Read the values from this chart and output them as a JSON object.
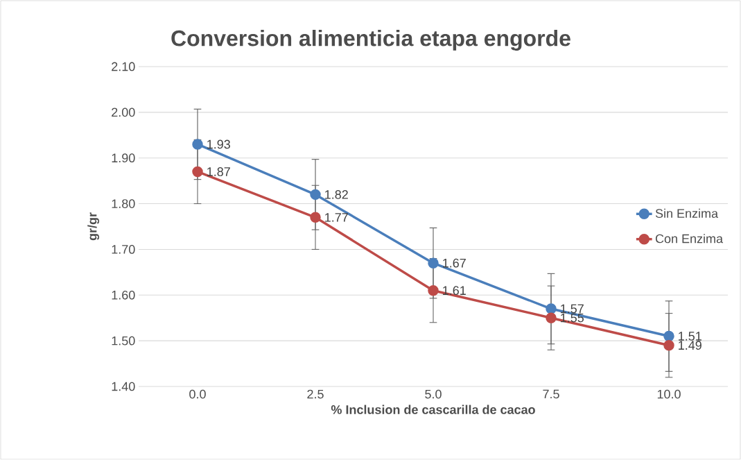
{
  "chart_data": {
    "type": "line",
    "title": "Conversion alimenticia etapa engorde",
    "xlabel": "% Inclusion de cascarilla de cacao",
    "ylabel": "gr/gr",
    "categories": [
      "0.0",
      "2.5",
      "5.0",
      "7.5",
      "10.0"
    ],
    "series": [
      {
        "name": "Sin Enzima",
        "color": "#4a7ebb",
        "values": [
          1.93,
          1.82,
          1.67,
          1.57,
          1.51
        ],
        "errors": [
          0.077,
          0.077,
          0.077,
          0.077,
          0.077
        ]
      },
      {
        "name": "Con Enzima",
        "color": "#be4b48",
        "values": [
          1.87,
          1.77,
          1.61,
          1.55,
          1.49
        ],
        "errors": [
          0.07,
          0.07,
          0.07,
          0.07,
          0.07
        ]
      }
    ],
    "ylim": [
      1.4,
      2.1
    ],
    "yticks": [
      {
        "value": 1.4,
        "label": "1.40"
      },
      {
        "value": 1.5,
        "label": "1.50"
      },
      {
        "value": 1.6,
        "label": "1.60"
      },
      {
        "value": 1.7,
        "label": "1.70"
      },
      {
        "value": 1.8,
        "label": "1.80"
      },
      {
        "value": 1.9,
        "label": "1.90"
      },
      {
        "value": 2.0,
        "label": "2.00"
      },
      {
        "value": 2.1,
        "label": "2.10"
      }
    ],
    "data_labels": true,
    "grid": "y",
    "legend": "right",
    "marker": "circle",
    "line_style": "solid"
  }
}
